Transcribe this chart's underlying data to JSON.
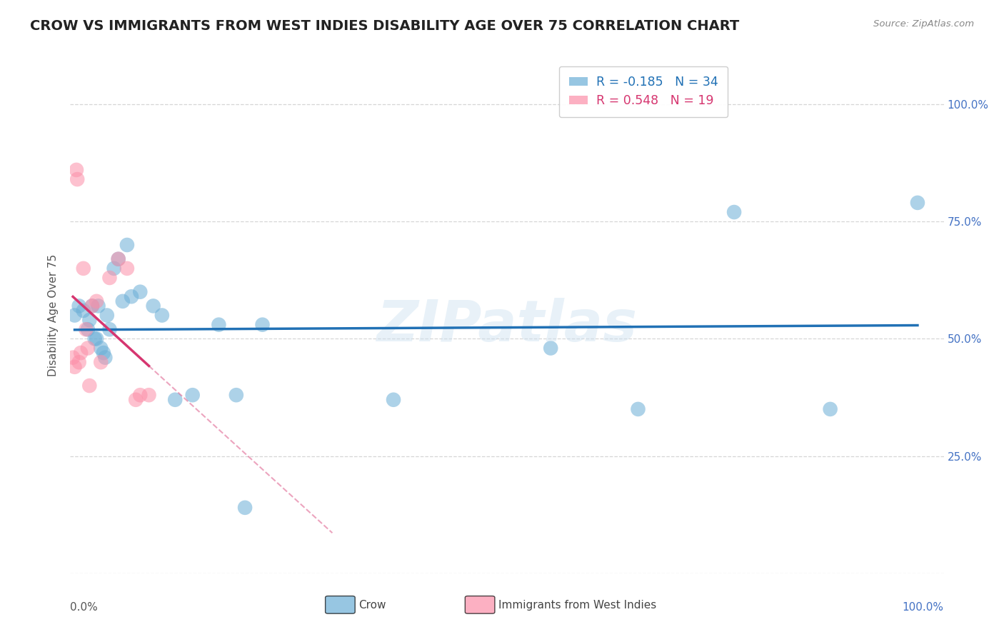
{
  "title": "CROW VS IMMIGRANTS FROM WEST INDIES DISABILITY AGE OVER 75 CORRELATION CHART",
  "source": "Source: ZipAtlas.com",
  "ylabel": "Disability Age Over 75",
  "legend_crow": "Crow",
  "legend_wi": "Immigrants from West Indies",
  "crow_R": -0.185,
  "crow_N": 34,
  "wi_R": 0.548,
  "wi_N": 19,
  "crow_color": "#6baed6",
  "wi_color": "#fc8fa8",
  "crow_line_color": "#2171b5",
  "wi_line_color": "#d63670",
  "background_color": "#ffffff",
  "grid_color": "#cccccc",
  "watermark": "ZIPatlas",
  "crow_x": [
    0.5,
    1.0,
    1.5,
    2.0,
    2.2,
    2.5,
    2.8,
    3.0,
    3.2,
    3.5,
    3.8,
    4.0,
    4.2,
    4.5,
    5.0,
    5.5,
    6.0,
    6.5,
    7.0,
    8.0,
    9.5,
    10.5,
    12.0,
    14.0,
    17.0,
    19.0,
    20.0,
    22.0,
    37.0,
    55.0,
    65.0,
    76.0,
    87.0,
    97.0
  ],
  "crow_y": [
    55.0,
    57.0,
    56.0,
    52.0,
    54.0,
    57.0,
    50.0,
    50.0,
    57.0,
    48.0,
    47.0,
    46.0,
    55.0,
    52.0,
    65.0,
    67.0,
    58.0,
    70.0,
    59.0,
    60.0,
    57.0,
    55.0,
    37.0,
    38.0,
    53.0,
    38.0,
    14.0,
    53.0,
    37.0,
    48.0,
    35.0,
    77.0,
    35.0,
    79.0
  ],
  "wi_x": [
    0.3,
    0.5,
    0.7,
    0.8,
    1.0,
    1.2,
    1.5,
    1.8,
    2.0,
    2.2,
    2.5,
    3.0,
    3.5,
    4.5,
    5.5,
    6.5,
    7.5,
    8.0,
    9.0
  ],
  "wi_y": [
    46.0,
    44.0,
    86.0,
    84.0,
    45.0,
    47.0,
    65.0,
    52.0,
    48.0,
    40.0,
    57.0,
    58.0,
    45.0,
    63.0,
    67.0,
    65.0,
    37.0,
    38.0,
    38.0
  ],
  "yticks": [
    0.0,
    25.0,
    50.0,
    75.0,
    100.0
  ],
  "ytick_right_labels": [
    "",
    "25.0%",
    "50.0%",
    "75.0%",
    "100.0%"
  ],
  "ylim": [
    0.0,
    110.0
  ],
  "xlim": [
    0.0,
    100.0
  ],
  "title_fontsize": 14,
  "axis_label_fontsize": 11,
  "tick_fontsize": 11
}
